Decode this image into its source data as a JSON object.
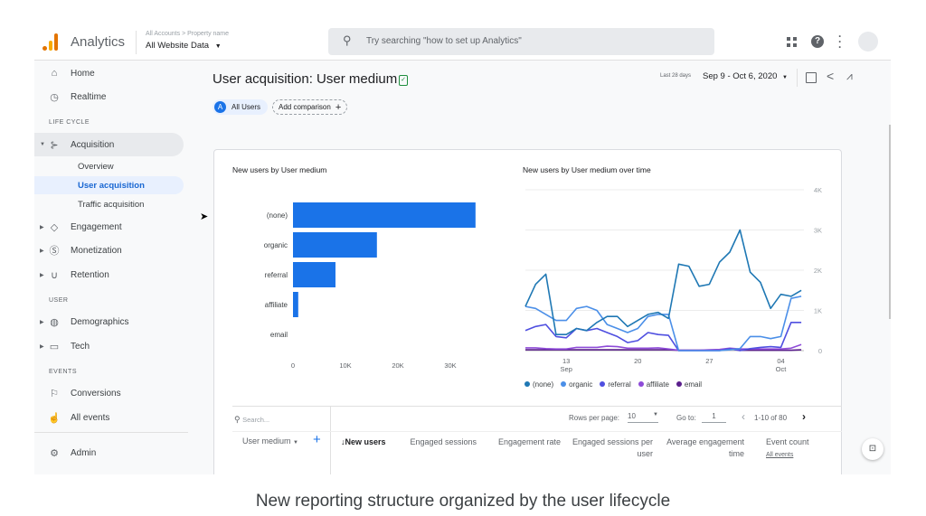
{
  "header": {
    "app_name": "Analytics",
    "breadcrumb": "All Accounts > Property name",
    "property": "All Website Data",
    "search_placeholder": "Try searching \"how to set up Analytics\""
  },
  "sidebar": {
    "items": [
      {
        "label": "Home",
        "icon": "home-icon"
      },
      {
        "label": "Realtime",
        "icon": "clock-icon"
      }
    ],
    "section_lifecycle": "LIFE CYCLE",
    "acquisition": "Acquisition",
    "acquisition_sub": [
      "Overview",
      "User acquisition",
      "Traffic acquisition"
    ],
    "lifecycle_items": [
      {
        "label": "Engagement",
        "icon": "tag-icon"
      },
      {
        "label": "Monetization",
        "icon": "dollar-icon"
      },
      {
        "label": "Retention",
        "icon": "magnet-icon"
      }
    ],
    "section_user": "USER",
    "user_items": [
      {
        "label": "Demographics",
        "icon": "globe-icon"
      },
      {
        "label": "Tech",
        "icon": "devices-icon"
      }
    ],
    "section_events": "EVENTS",
    "event_items": [
      {
        "label": "Conversions",
        "icon": "flag-icon"
      },
      {
        "label": "All events",
        "icon": "touch-icon"
      }
    ],
    "admin": "Admin"
  },
  "page": {
    "title": "User acquisition: User medium",
    "segment_letter": "A",
    "segment": "All Users",
    "add_comparison": "Add comparison",
    "date_label": "Last 28 days",
    "date_range": "Sep 9 - Oct 6, 2020"
  },
  "colors": {
    "bar": "#1a73e8",
    "none": "#1f78b4",
    "organic": "#4b8fe8",
    "referral": "#4f4fe0",
    "affiliate": "#8e4bd8",
    "email": "#5a1e8c"
  },
  "chart_data": [
    {
      "type": "bar",
      "title": "New users by User medium",
      "categories": [
        "(none)",
        "organic",
        "referral",
        "affiliate",
        "email"
      ],
      "values": [
        34800,
        16000,
        8100,
        1000,
        0
      ],
      "xlim": [
        0,
        35000
      ],
      "ticks": [
        "0",
        "10K",
        "20K",
        "30K"
      ],
      "tick_values": [
        0,
        10000,
        20000,
        30000
      ]
    },
    {
      "type": "line",
      "title": "New users by User medium over time",
      "ylim": [
        0,
        4000
      ],
      "y_ticks": [
        "0",
        "1K",
        "2K",
        "3K",
        "4K"
      ],
      "y_tick_values": [
        0,
        1000,
        2000,
        3000,
        4000
      ],
      "x_ticks": [
        {
          "day": 4,
          "label": "13",
          "sub": "Sep"
        },
        {
          "day": 11,
          "label": "20",
          "sub": ""
        },
        {
          "day": 18,
          "label": "27",
          "sub": ""
        },
        {
          "day": 25,
          "label": "04",
          "sub": "Oct"
        }
      ],
      "series": [
        {
          "name": "(none)",
          "color": "#1f78b4",
          "values": [
            1100,
            1650,
            1900,
            400,
            400,
            550,
            500,
            700,
            850,
            850,
            600,
            750,
            900,
            950,
            800,
            2150,
            2100,
            1600,
            1650,
            2200,
            2450,
            3000,
            1950,
            1700,
            1050,
            1400,
            1350,
            1500
          ]
        },
        {
          "name": "organic",
          "color": "#4b8fe8",
          "values": [
            1100,
            1050,
            900,
            750,
            750,
            1050,
            1100,
            1000,
            650,
            550,
            450,
            550,
            850,
            900,
            900,
            0,
            0,
            0,
            0,
            0,
            20,
            50,
            350,
            350,
            300,
            350,
            1300,
            1350
          ]
        },
        {
          "name": "referral",
          "color": "#4f4fe0",
          "values": [
            500,
            600,
            650,
            350,
            320,
            550,
            500,
            550,
            450,
            350,
            200,
            250,
            450,
            400,
            380,
            0,
            0,
            0,
            0,
            0,
            50,
            0,
            50,
            80,
            100,
            80,
            700,
            700
          ]
        },
        {
          "name": "affiliate",
          "color": "#8e4bd8",
          "values": [
            70,
            70,
            50,
            40,
            40,
            80,
            80,
            80,
            110,
            100,
            60,
            60,
            60,
            70,
            40,
            10,
            10,
            10,
            20,
            30,
            60,
            40,
            40,
            40,
            40,
            40,
            60,
            150
          ]
        },
        {
          "name": "email",
          "color": "#5a1e8c",
          "values": [
            20,
            20,
            20,
            20,
            20,
            20,
            20,
            20,
            20,
            20,
            20,
            20,
            20,
            20,
            20,
            10,
            10,
            10,
            10,
            10,
            40,
            10,
            10,
            10,
            10,
            10,
            10,
            20
          ]
        }
      ]
    }
  ],
  "table": {
    "search_placeholder": "Search...",
    "rows_per_page_label": "Rows per page:",
    "rows_per_page": "10",
    "goto_label": "Go to:",
    "goto_value": "1",
    "pagination": "1-10 of 80",
    "dimension": "User medium",
    "columns": [
      "New users",
      "Engaged sessions",
      "Engagement rate",
      "Engaged sessions per user",
      "Average engagement time",
      "Event count"
    ],
    "event_filter": "All events"
  },
  "caption": "New reporting structure organized by the user lifecycle"
}
